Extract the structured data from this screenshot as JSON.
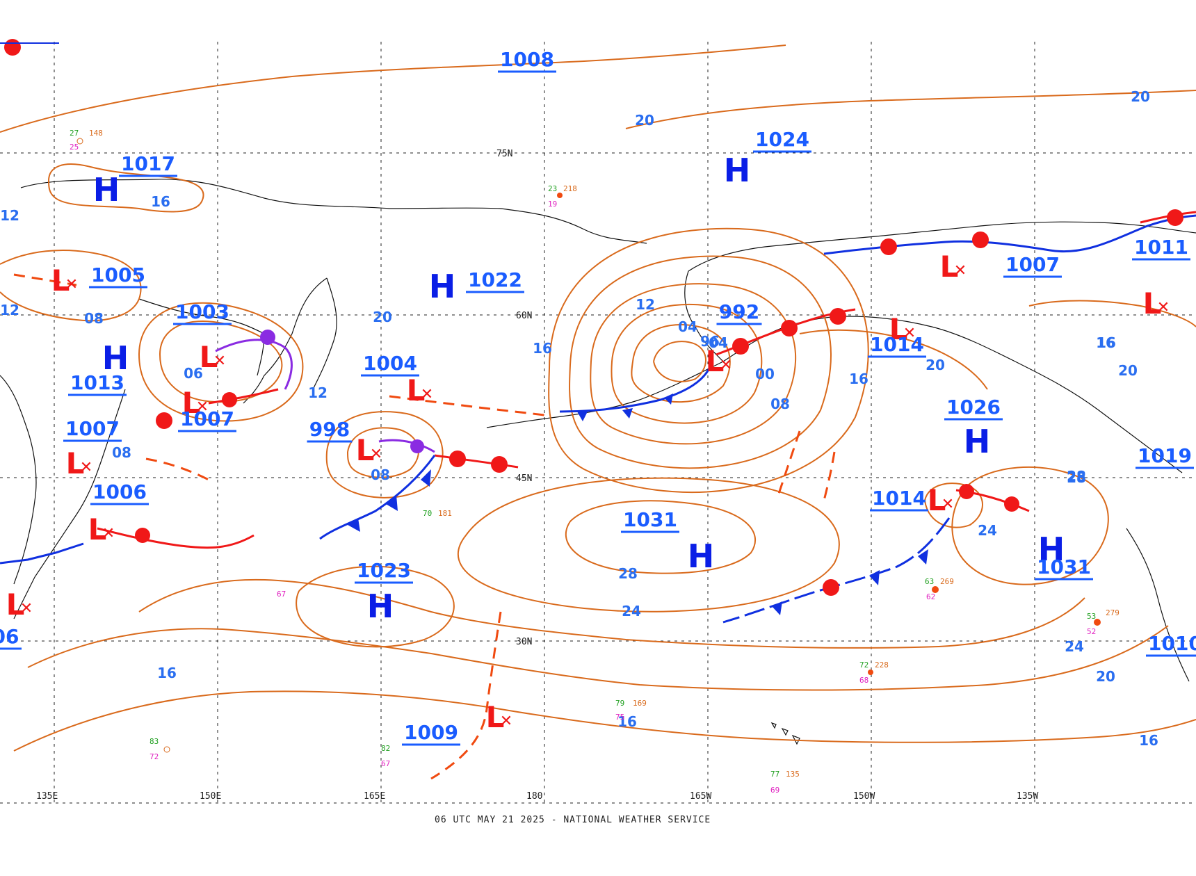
{
  "footer": "06 UTC MAY 21 2025 - NATIONAL WEATHER SERVICE",
  "colors": {
    "isobar": "#d96a1c",
    "cold_front": "#1030e0",
    "warm_front": "#f01818",
    "occluded_front": "#8a2be2",
    "high_label": "#1a5cff",
    "low_label": "#f01818",
    "station_temp": "#20a020",
    "station_dew": "#e020c0",
    "station_pres": "#d96a1c"
  },
  "grid": {
    "lon_labels": [
      "135E",
      "150E",
      "165E",
      "180",
      "165W",
      "150W",
      "135W"
    ],
    "lat_labels": [
      "75N",
      "60N",
      "45N",
      "30N"
    ]
  },
  "highs": [
    {
      "letter": "H",
      "value": "1017"
    },
    {
      "letter": "H",
      "value": "1013"
    },
    {
      "letter": "H",
      "value": "1022"
    },
    {
      "letter": "H",
      "value": "1024"
    },
    {
      "letter": "H",
      "value": "1026"
    },
    {
      "letter": "H",
      "value": "1031"
    },
    {
      "letter": "H",
      "value": "1023"
    },
    {
      "letter": "H",
      "value": "1031"
    }
  ],
  "lows": [
    {
      "letter": "L",
      "value": "1005"
    },
    {
      "letter": "L",
      "value": "1003"
    },
    {
      "letter": "L",
      "value": "1007"
    },
    {
      "letter": "L",
      "value": "1007"
    },
    {
      "letter": "L",
      "value": "1006"
    },
    {
      "letter": "L",
      "value": "1004"
    },
    {
      "letter": "L",
      "value": "998"
    },
    {
      "letter": "L",
      "value": "992"
    },
    {
      "letter": "L",
      "value": "1014"
    },
    {
      "letter": "L",
      "value": "1007"
    },
    {
      "letter": "L",
      "value": "1014"
    },
    {
      "letter": "L",
      "value": "1009"
    },
    {
      "letter": "L",
      "value": "1011"
    },
    {
      "letter": "L",
      "value": "06"
    }
  ],
  "other_pressure_labels": [
    "1008",
    "1019",
    "1010"
  ],
  "isobar_labels": [
    "20",
    "20",
    "12",
    "16",
    "08",
    "12",
    "08",
    "06",
    "16",
    "08",
    "12",
    "20",
    "16",
    "08",
    "04",
    "04",
    "96",
    "00",
    "08",
    "16",
    "20",
    "20",
    "16",
    "16",
    "28",
    "24",
    "28",
    "24",
    "20",
    "16",
    "24",
    "28",
    "20",
    "16",
    "12",
    "08",
    "16",
    "08",
    "20"
  ]
}
